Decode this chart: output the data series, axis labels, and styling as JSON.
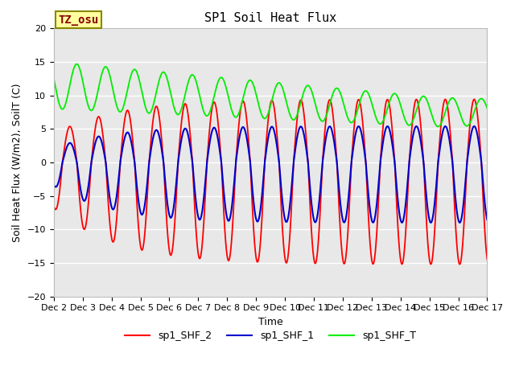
{
  "title": "SP1 Soil Heat Flux",
  "xlabel": "Time",
  "ylabel": "Soil Heat Flux (W/m2), SoilT (C)",
  "ylim": [
    -20,
    20
  ],
  "xlim_days": [
    2,
    17
  ],
  "xtick_labels": [
    "Dec 2",
    "Dec 3",
    "Dec 4",
    "Dec 5",
    "Dec 6",
    "Dec 7",
    "Dec 8",
    "Dec 9",
    "Dec 10",
    "Dec 11",
    "Dec 12",
    "Dec 13",
    "Dec 14",
    "Dec 15",
    "Dec 16",
    "Dec 17"
  ],
  "annotation_text": "TZ_osu",
  "annotation_bg": "#ffffa0",
  "annotation_border": "#888800",
  "annotation_text_color": "#880000",
  "line_colors": {
    "sp1_SHF_2": "#ff0000",
    "sp1_SHF_1": "#0000cc",
    "sp1_SHF_T": "#00ee00"
  },
  "line_widths": {
    "sp1_SHF_2": 1.3,
    "sp1_SHF_1": 1.5,
    "sp1_SHF_T": 1.3
  },
  "bg_color": "#e8e8e8",
  "fig_bg": "#ffffff",
  "grid_color": "#ffffff",
  "title_fontsize": 11,
  "axis_fontsize": 9,
  "tick_fontsize": 8,
  "legend_fontsize": 9
}
